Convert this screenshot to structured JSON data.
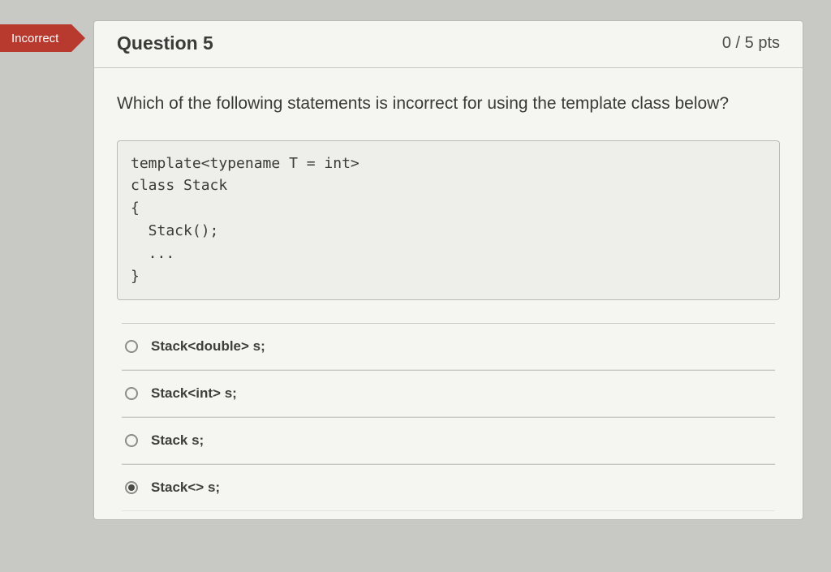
{
  "badge": {
    "text": "Incorrect",
    "bg": "#b8392e"
  },
  "header": {
    "title": "Question 5",
    "points": "0 / 5 pts"
  },
  "question": {
    "prompt": "Which of the following statements is incorrect for using the template class below?",
    "code": "template<typename T = int>\nclass Stack\n{\n  Stack();\n  ...\n}"
  },
  "options": [
    {
      "label": "Stack<double> s;",
      "selected": false
    },
    {
      "label": "Stack<int> s;",
      "selected": false
    },
    {
      "label": "Stack s;",
      "selected": false
    },
    {
      "label": "Stack<> s;",
      "selected": true
    }
  ],
  "colors": {
    "page_bg": "#c8c9c5",
    "card_bg": "#f5f6f2",
    "border": "#b9bab6",
    "text": "#3a3b38"
  }
}
